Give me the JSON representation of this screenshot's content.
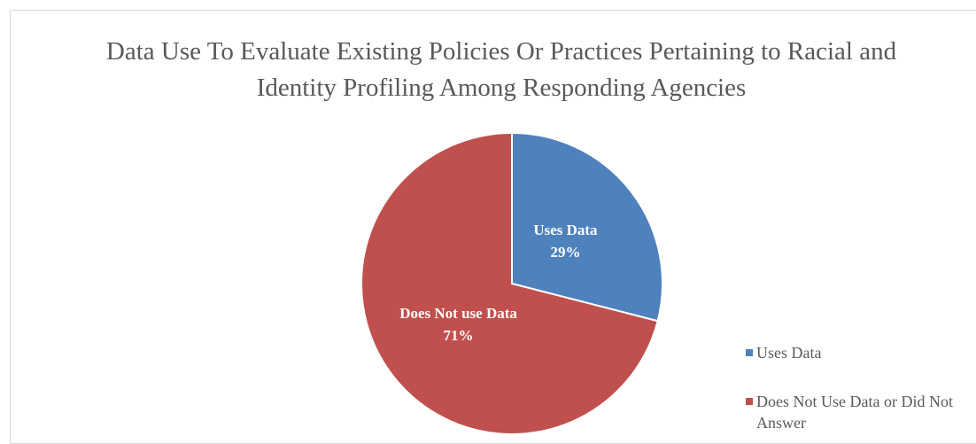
{
  "chart_data": {
    "type": "pie",
    "title": "Data Use To Evaluate Existing Policies Or Practices Pertaining to Racial and Identity Profiling Among Responding Agencies",
    "categories": [
      "Uses Data",
      "Does Not Use Data or Did Not Answer"
    ],
    "slice_labels": [
      "Uses Data",
      "Does Not use Data"
    ],
    "values": [
      29,
      71
    ],
    "value_labels": [
      "29%",
      "71%"
    ],
    "colors": [
      "#4f81bd",
      "#c0504d"
    ],
    "legend": "right"
  }
}
